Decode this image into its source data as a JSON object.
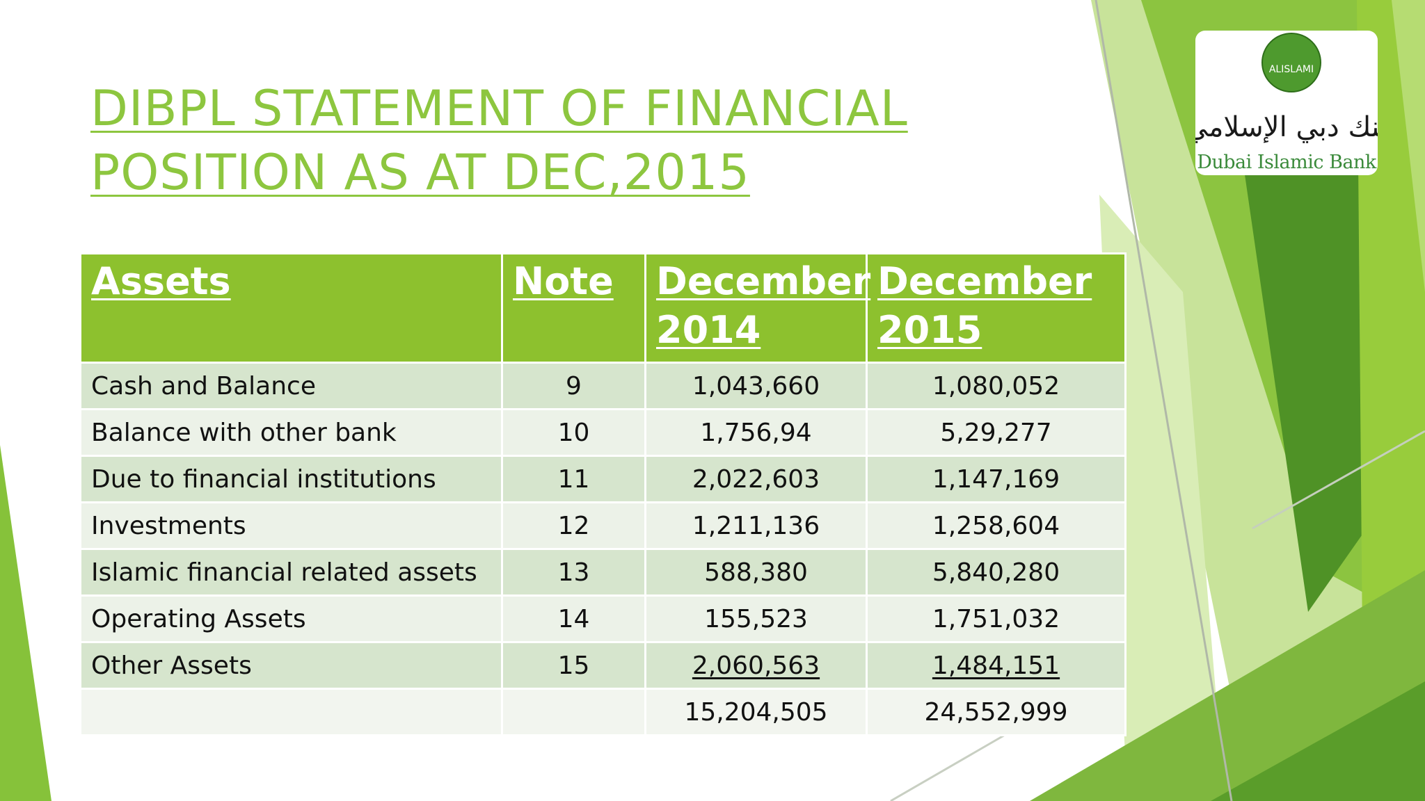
{
  "slide": {
    "title_lines": [
      "DIBPL STATEMENT OF FINANCIAL",
      "POSITION AS AT DEC,2015"
    ]
  },
  "logo": {
    "emblem_text": "ALISLAMI",
    "arabic_name": "بنك دبي الإسلامي",
    "english_name": "Dubai Islamic Bank"
  },
  "table": {
    "headers": {
      "assets": "Assets",
      "note": "Note",
      "dec2014": [
        "December",
        "2014"
      ],
      "dec2015": [
        "December",
        "2015"
      ]
    },
    "rows": [
      {
        "label": "Cash and Balance",
        "note": "9",
        "dec2014": "1,043,660",
        "dec2015": "1,080,052"
      },
      {
        "label": "Balance with other bank",
        "note": "10",
        "dec2014": "1,756,94",
        "dec2015": "5,29,277"
      },
      {
        "label": "Due to financial institutions",
        "note": "11",
        "dec2014": "2,022,603",
        "dec2015": "1,147,169"
      },
      {
        "label": "Investments",
        "note": "12",
        "dec2014": "1,211,136",
        "dec2015": "1,258,604"
      },
      {
        "label": "Islamic financial related assets",
        "note": "13",
        "dec2014": "588,380",
        "dec2015": "5,840,280"
      },
      {
        "label": "Operating Assets",
        "note": "14",
        "dec2014": "155,523",
        "dec2015": "1,751,032"
      },
      {
        "label": "Other Assets",
        "note": "15",
        "dec2014": "2,060,563",
        "dec2015": "1,484,151"
      }
    ],
    "total": {
      "label": "",
      "note": "",
      "dec2014": "15,204,505",
      "dec2015": "24,552,999"
    }
  },
  "colors": {
    "accent": "#8dc63f",
    "header_bg": "#8dc12e",
    "row_dark": "#d6e5cd",
    "row_light": "#ecf2e8",
    "deco_dark": "#4e8f22",
    "deco_mid": "#7ab53a",
    "deco_light": "#a6d34e"
  }
}
